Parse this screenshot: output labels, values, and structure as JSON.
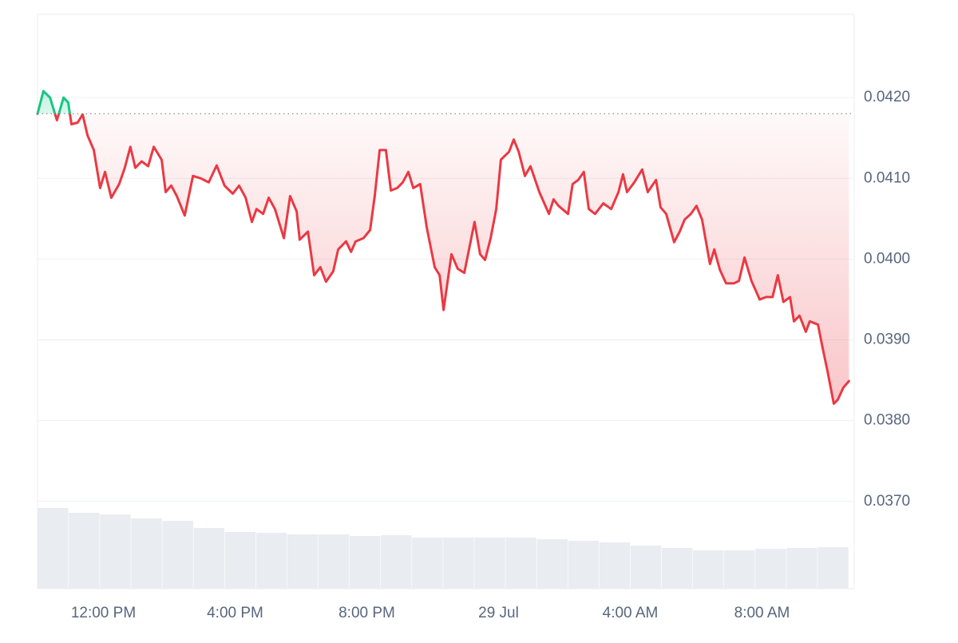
{
  "chart_data": {
    "type": "line",
    "xlim": [
      10,
      34.8
    ],
    "xticks": [
      {
        "value": 12,
        "label": "12:00 PM"
      },
      {
        "value": 16,
        "label": "4:00 PM"
      },
      {
        "value": 20,
        "label": "8:00 PM"
      },
      {
        "value": 24,
        "label": "29 Jul"
      },
      {
        "value": 28,
        "label": "4:00 AM"
      },
      {
        "value": 32,
        "label": "8:00 AM"
      }
    ],
    "ylim": [
      0.03592,
      0.04303
    ],
    "yticks": [
      {
        "value": 0.042,
        "label": "0.0420"
      },
      {
        "value": 0.041,
        "label": "0.0410"
      },
      {
        "value": 0.04,
        "label": "0.0400"
      },
      {
        "value": 0.039,
        "label": "0.0390"
      },
      {
        "value": 0.038,
        "label": "0.0380"
      },
      {
        "value": 0.037,
        "label": "0.0370"
      }
    ],
    "grid": true,
    "baseline": 0.0418,
    "up_color": "#16c784",
    "down_color": "#ea3943",
    "x": [
      10.0,
      10.18,
      10.38,
      10.59,
      10.79,
      10.93,
      11.03,
      11.22,
      11.37,
      11.52,
      11.71,
      11.9,
      12.05,
      12.24,
      12.48,
      12.65,
      12.82,
      12.97,
      13.16,
      13.36,
      13.53,
      13.77,
      13.89,
      14.06,
      14.23,
      14.47,
      14.72,
      14.96,
      15.2,
      15.44,
      15.68,
      15.93,
      16.12,
      16.32,
      16.51,
      16.65,
      16.85,
      17.02,
      17.21,
      17.48,
      17.67,
      17.87,
      17.96,
      18.21,
      18.4,
      18.59,
      18.76,
      18.98,
      19.13,
      19.37,
      19.52,
      19.66,
      19.9,
      20.1,
      20.24,
      20.39,
      20.58,
      20.73,
      20.92,
      21.09,
      21.26,
      21.41,
      21.62,
      21.82,
      22.06,
      22.21,
      22.33,
      22.57,
      22.76,
      22.96,
      23.27,
      23.44,
      23.59,
      23.76,
      23.93,
      24.07,
      24.32,
      24.46,
      24.61,
      24.8,
      24.97,
      25.24,
      25.53,
      25.67,
      25.82,
      26.11,
      26.25,
      26.42,
      26.59,
      26.74,
      26.93,
      27.18,
      27.42,
      27.64,
      27.78,
      27.9,
      28.12,
      28.36,
      28.53,
      28.78,
      28.92,
      29.09,
      29.33,
      29.5,
      29.65,
      29.84,
      30.01,
      30.18,
      30.42,
      30.55,
      30.72,
      30.91,
      31.15,
      31.3,
      31.47,
      31.68,
      31.93,
      32.12,
      32.32,
      32.48,
      32.65,
      32.85,
      32.97,
      33.14,
      33.33,
      33.45,
      33.7,
      33.82,
      33.99,
      34.18,
      34.3,
      34.47,
      34.64
    ],
    "series": [
      {
        "values": [
          0.0418,
          0.04208,
          0.042,
          0.04172,
          0.042,
          0.04194,
          0.04167,
          0.04169,
          0.04179,
          0.04153,
          0.04135,
          0.04088,
          0.04108,
          0.04076,
          0.04093,
          0.04113,
          0.04139,
          0.04113,
          0.04121,
          0.04115,
          0.04139,
          0.04123,
          0.04083,
          0.04091,
          0.04078,
          0.04054,
          0.04103,
          0.041,
          0.04095,
          0.04116,
          0.04091,
          0.04081,
          0.04091,
          0.04076,
          0.04046,
          0.04062,
          0.04056,
          0.04076,
          0.04062,
          0.04026,
          0.04078,
          0.04059,
          0.04024,
          0.04034,
          0.0398,
          0.0399,
          0.03972,
          0.03985,
          0.04012,
          0.04022,
          0.04009,
          0.04022,
          0.04026,
          0.04036,
          0.04078,
          0.04135,
          0.04135,
          0.04085,
          0.04088,
          0.04095,
          0.04108,
          0.04088,
          0.04093,
          0.04039,
          0.0399,
          0.0398,
          0.03937,
          0.04006,
          0.03988,
          0.03983,
          0.04046,
          0.04006,
          0.03999,
          0.04026,
          0.04062,
          0.04123,
          0.04133,
          0.04148,
          0.04133,
          0.04103,
          0.04115,
          0.04083,
          0.04056,
          0.04074,
          0.04066,
          0.04056,
          0.04093,
          0.04098,
          0.04108,
          0.04062,
          0.04056,
          0.04069,
          0.04062,
          0.04083,
          0.04105,
          0.04083,
          0.04095,
          0.04111,
          0.04083,
          0.04098,
          0.04064,
          0.04056,
          0.04021,
          0.04034,
          0.04049,
          0.04056,
          0.04066,
          0.04049,
          0.03994,
          0.04012,
          0.03987,
          0.0397,
          0.0397,
          0.03973,
          0.04002,
          0.03973,
          0.0395,
          0.03953,
          0.03953,
          0.0398,
          0.03947,
          0.03953,
          0.03923,
          0.0393,
          0.0391,
          0.03923,
          0.03919,
          0.03894,
          0.03861,
          0.03821,
          0.03826,
          0.03841,
          0.03849
        ]
      }
    ],
    "volume": {
      "color": "#e9edf1",
      "values": [
        101,
        95,
        93,
        88,
        85,
        76,
        71,
        70,
        68,
        68,
        66,
        67,
        64,
        64,
        64,
        64,
        62,
        60,
        58,
        54,
        51,
        48,
        48,
        50,
        51,
        52
      ]
    }
  }
}
